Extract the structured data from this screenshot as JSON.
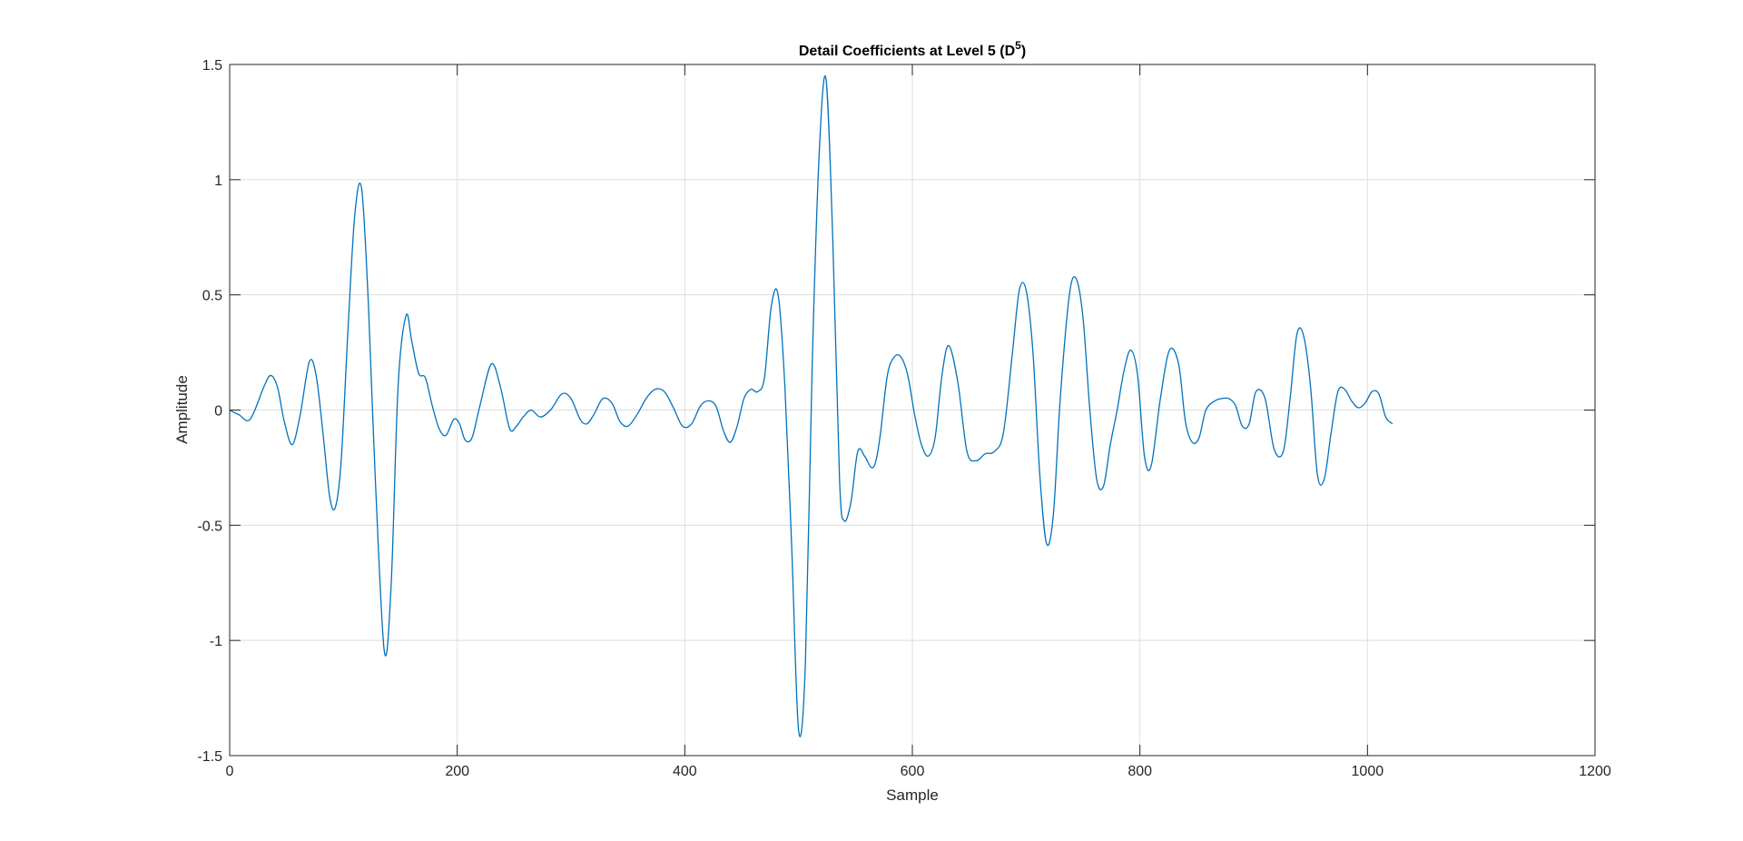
{
  "chart_data": {
    "type": "line",
    "title": "Detail Coefficients at Level 5 (D",
    "title_superscript": "5",
    "title_suffix": ")",
    "xlabel": "Sample",
    "ylabel": "Amplitude",
    "xlim": [
      0,
      1200
    ],
    "ylim": [
      -1.5,
      1.5
    ],
    "xticks": [
      0,
      200,
      400,
      600,
      800,
      1000,
      1200
    ],
    "yticks": [
      -1.5,
      -1,
      -0.5,
      0,
      0.5,
      1,
      1.5
    ],
    "xtick_labels": [
      "0",
      "200",
      "400",
      "600",
      "800",
      "1000",
      "1200"
    ],
    "ytick_labels": [
      "-1.5",
      "-1",
      "-0.5",
      "0",
      "0.5",
      "1",
      "1.5"
    ],
    "grid": true,
    "line_color": "#0072BD",
    "series": [
      {
        "x": [
          0,
          8,
          18,
          30,
          36,
          42,
          48,
          55,
          62,
          70,
          76,
          82,
          88,
          93,
          98,
          104,
          110,
          116,
          122,
          128,
          136,
          142,
          148,
          155,
          160,
          166,
          172,
          178,
          184,
          190,
          197,
          202,
          207,
          213,
          220,
          230,
          238,
          246,
          252,
          258,
          265,
          273,
          282,
          292,
          300,
          308,
          314,
          320,
          328,
          336,
          343,
          350,
          358,
          366,
          374,
          382,
          390,
          398,
          406,
          414,
          422,
          428,
          434,
          440,
          446,
          452,
          458,
          464,
          470,
          476,
          482,
          488,
          494,
          500,
          506,
          512,
          518,
          524,
          530,
          536,
          540,
          546,
          552,
          558,
          564,
          568,
          572,
          578,
          584,
          590,
          596,
          602,
          608,
          614,
          620,
          626,
          632,
          640,
          648,
          656,
          664,
          672,
          680,
          688,
          694,
          700,
          706,
          712,
          718,
          724,
          730,
          738,
          744,
          750,
          756,
          762,
          768,
          774,
          780,
          786,
          792,
          798,
          804,
          810,
          818,
          826,
          834,
          840,
          846,
          852,
          858,
          866,
          872,
          878,
          884,
          890,
          896,
          902,
          910,
          918,
          926,
          932,
          938,
          944,
          950,
          956,
          962,
          968,
          974,
          980,
          986,
          992,
          998,
          1004,
          1010,
          1016,
          1022
        ],
        "y": [
          0,
          -0.02,
          -0.04,
          0.1,
          0.15,
          0.1,
          -0.05,
          -0.15,
          -0.02,
          0.21,
          0.15,
          -0.1,
          -0.38,
          -0.42,
          -0.22,
          0.35,
          0.85,
          0.96,
          0.45,
          -0.3,
          -1.05,
          -0.75,
          0.1,
          0.41,
          0.3,
          0.16,
          0.14,
          0.02,
          -0.08,
          -0.11,
          -0.04,
          -0.06,
          -0.13,
          -0.12,
          0.02,
          0.2,
          0.1,
          -0.08,
          -0.07,
          -0.03,
          0,
          -0.03,
          0,
          0.07,
          0.05,
          -0.04,
          -0.06,
          -0.02,
          0.05,
          0.03,
          -0.05,
          -0.07,
          -0.02,
          0.05,
          0.09,
          0.08,
          0.01,
          -0.07,
          -0.06,
          0.02,
          0.04,
          0.01,
          -0.09,
          -0.14,
          -0.07,
          0.05,
          0.09,
          0.08,
          0.14,
          0.45,
          0.5,
          0.1,
          -0.6,
          -1.39,
          -1.1,
          0.2,
          1.1,
          1.44,
          0.75,
          -0.3,
          -0.48,
          -0.4,
          -0.18,
          -0.2,
          -0.25,
          -0.22,
          -0.1,
          0.15,
          0.23,
          0.23,
          0.15,
          -0.02,
          -0.15,
          -0.2,
          -0.12,
          0.15,
          0.28,
          0.12,
          -0.18,
          -0.22,
          -0.19,
          -0.18,
          -0.1,
          0.25,
          0.52,
          0.52,
          0.25,
          -0.28,
          -0.58,
          -0.45,
          0.05,
          0.5,
          0.57,
          0.4,
          0.0,
          -0.3,
          -0.33,
          -0.15,
          0.0,
          0.17,
          0.26,
          0.15,
          -0.2,
          -0.24,
          0.05,
          0.26,
          0.2,
          -0.05,
          -0.14,
          -0.12,
          0.0,
          0.04,
          0.05,
          0.05,
          0.02,
          -0.07,
          -0.06,
          0.08,
          0.05,
          -0.17,
          -0.18,
          0.05,
          0.33,
          0.32,
          0.1,
          -0.28,
          -0.3,
          -0.1,
          0.08,
          0.09,
          0.04,
          0.01,
          0.03,
          0.08,
          0.07,
          -0.03,
          -0.06
        ]
      }
    ]
  }
}
